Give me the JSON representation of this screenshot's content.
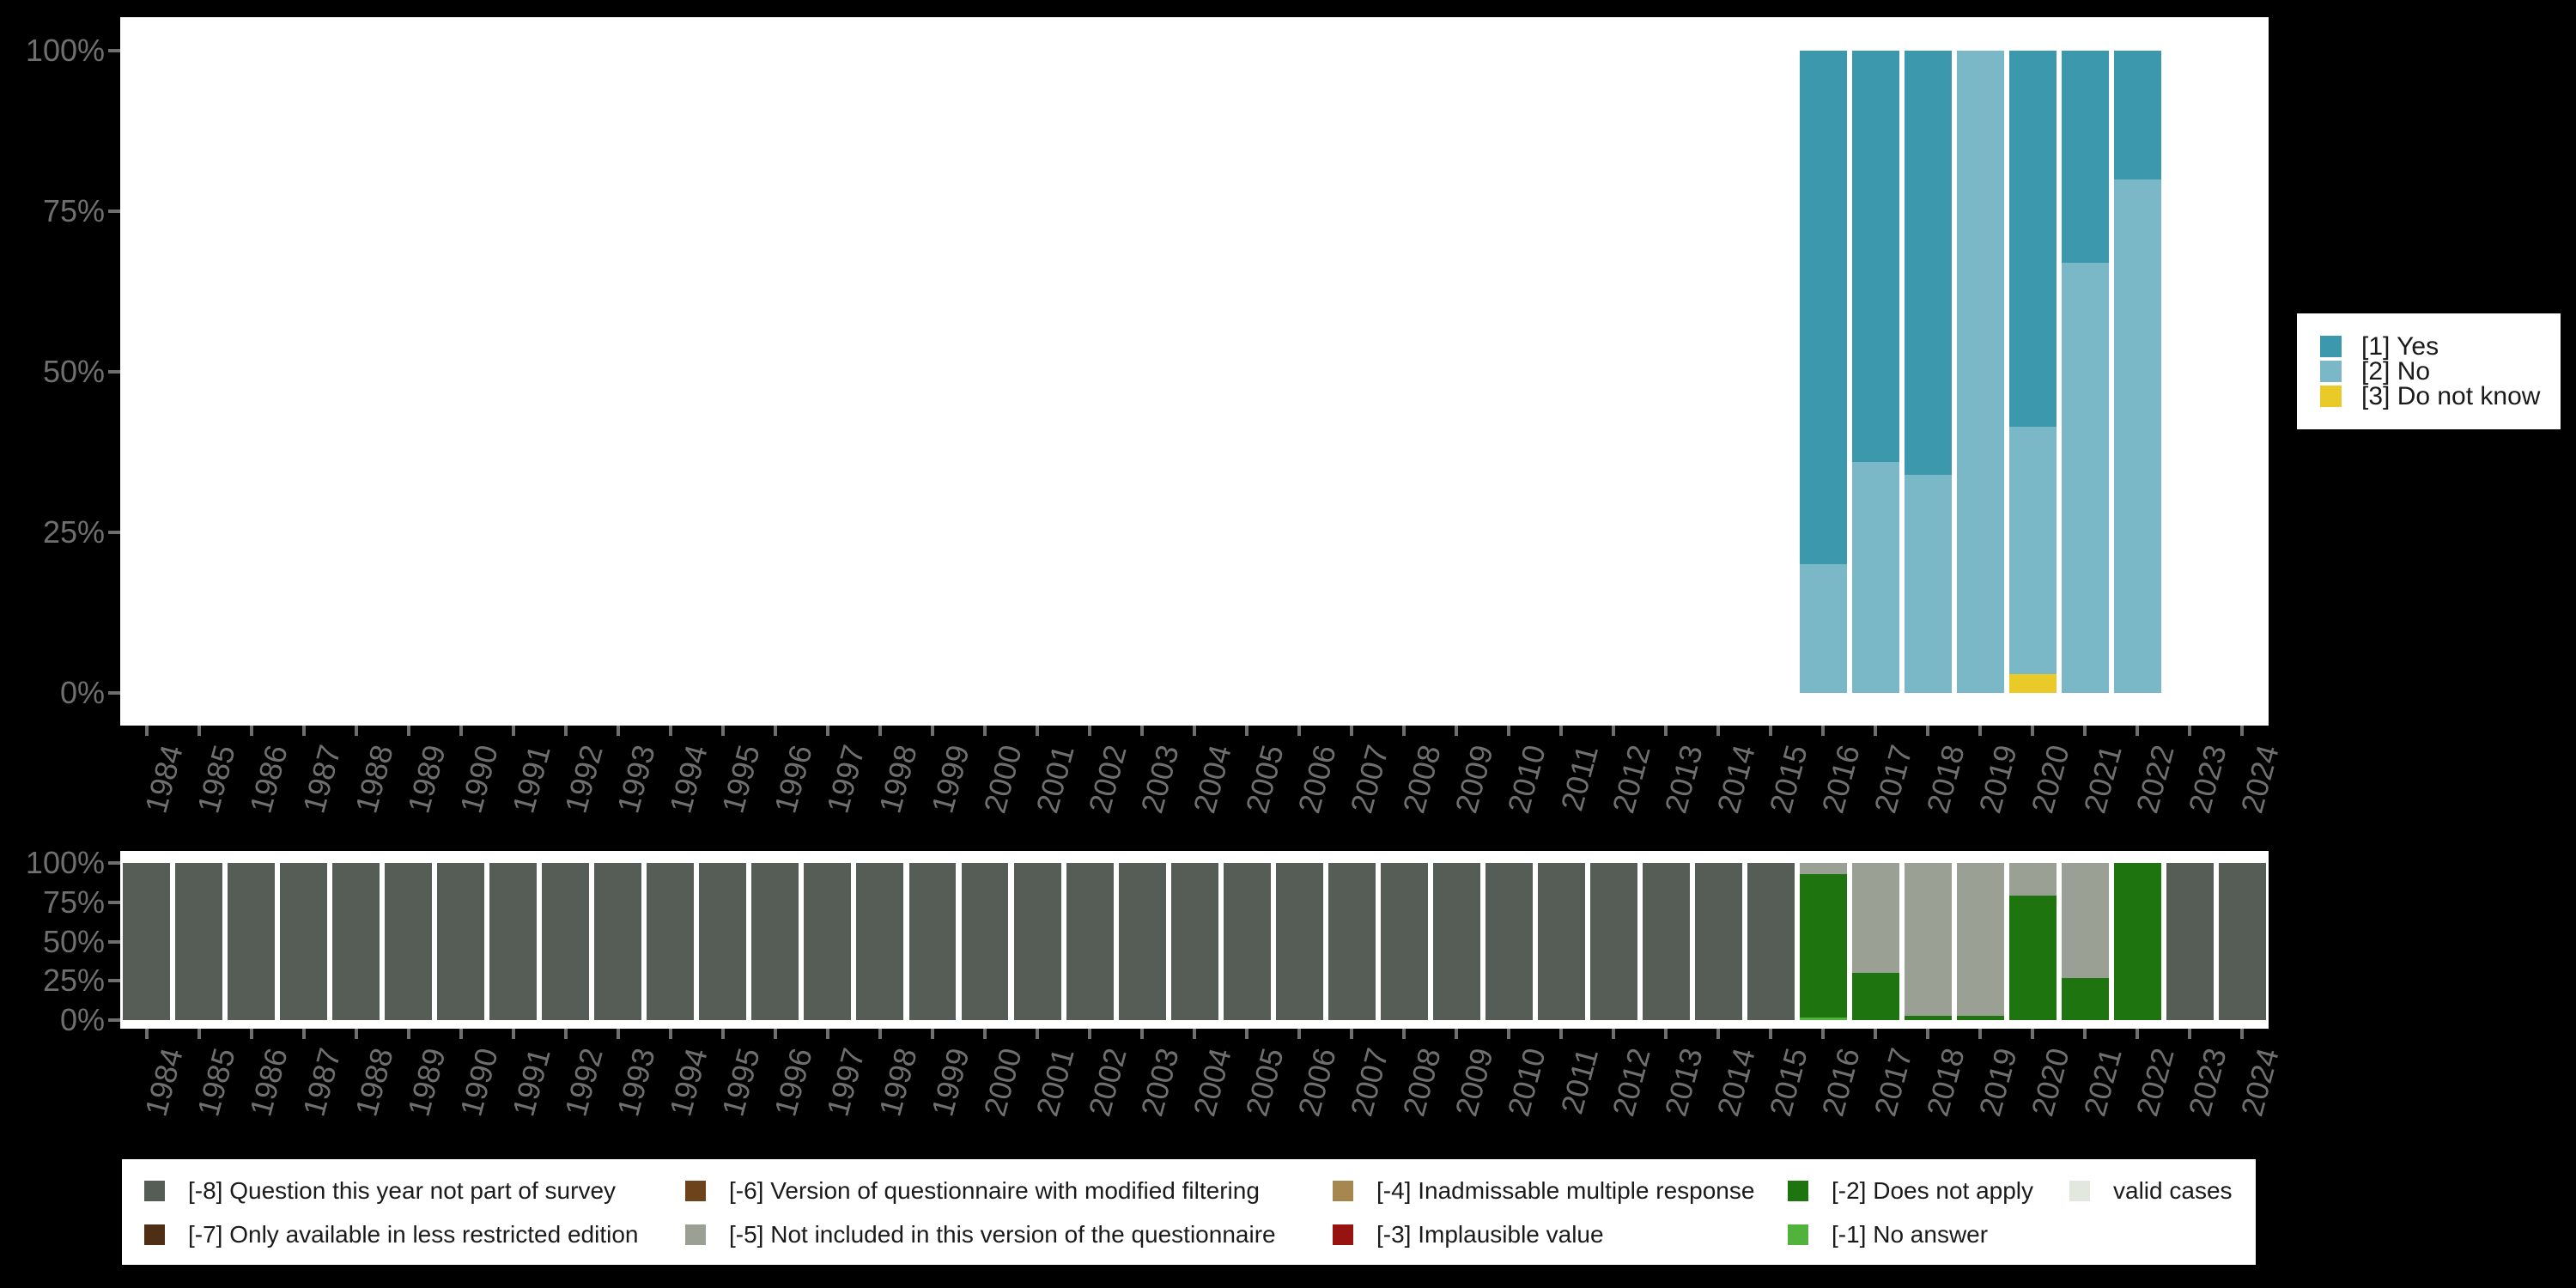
{
  "colors": {
    "background": "#000000",
    "panel": "#ffffff",
    "axis_text": "#6f6f6f",
    "legend_text": "#1a1a1a",
    "yes": "#3c98ad",
    "no": "#7ab7c7",
    "dk": "#e9ca28",
    "m8": "#565d56",
    "m7": "#4e2e15",
    "m6": "#6d431c",
    "m5": "#9ba095",
    "m4": "#a6874f",
    "m3": "#971310",
    "m2": "#1e750f",
    "m1": "#52b33c",
    "valid": "#e3e8df"
  },
  "years": [
    1984,
    1985,
    1986,
    1987,
    1988,
    1989,
    1990,
    1991,
    1992,
    1993,
    1994,
    1995,
    1996,
    1997,
    1998,
    1999,
    2000,
    2001,
    2002,
    2003,
    2004,
    2005,
    2006,
    2007,
    2008,
    2009,
    2010,
    2011,
    2012,
    2013,
    2014,
    2015,
    2016,
    2017,
    2018,
    2019,
    2020,
    2021,
    2022,
    2023,
    2024
  ],
  "y_axis_labels_top_to_bottom": [
    "100%",
    "75%",
    "50%",
    "25%",
    "0%"
  ],
  "chart_data": [
    {
      "id": "responses",
      "type": "bar",
      "stacked": true,
      "unit": "percent",
      "ylim": [
        0,
        100
      ],
      "y_tick_labels": [
        "0%",
        "25%",
        "50%",
        "75%",
        "100%"
      ],
      "grid": false,
      "legend_position": "right",
      "legend": [
        {
          "key": "yes",
          "label": "[1] Yes"
        },
        {
          "key": "no",
          "label": "[2] No"
        },
        {
          "key": "dk",
          "label": "[3] Do not know"
        }
      ],
      "bars": [
        {
          "year": 2016,
          "seg": [
            [
              "yes",
              80
            ],
            [
              "no",
              20
            ]
          ]
        },
        {
          "year": 2017,
          "seg": [
            [
              "yes",
              64
            ],
            [
              "no",
              36
            ]
          ]
        },
        {
          "year": 2018,
          "seg": [
            [
              "yes",
              66
            ],
            [
              "no",
              34
            ]
          ]
        },
        {
          "year": 2019,
          "seg": [
            [
              "no",
              100
            ]
          ]
        },
        {
          "year": 2020,
          "seg": [
            [
              "yes",
              58.5
            ],
            [
              "no",
              38.5
            ],
            [
              "dk",
              3
            ]
          ]
        },
        {
          "year": 2021,
          "seg": [
            [
              "yes",
              33
            ],
            [
              "no",
              67
            ]
          ]
        },
        {
          "year": 2022,
          "seg": [
            [
              "yes",
              20
            ],
            [
              "no",
              80
            ]
          ]
        }
      ]
    },
    {
      "id": "missings",
      "type": "bar",
      "stacked": true,
      "unit": "percent",
      "ylim": [
        0,
        100
      ],
      "y_tick_labels": [
        "0%",
        "25%",
        "50%",
        "75%",
        "100%"
      ],
      "grid": false,
      "legend_position": "bottom",
      "legend_columns": [
        [
          {
            "key": "m8",
            "label": "[-8] Question this year not part of survey"
          },
          {
            "key": "m7",
            "label": "[-7] Only available in less restricted edition"
          }
        ],
        [
          {
            "key": "m6",
            "label": "[-6] Version of questionnaire with modified filtering"
          },
          {
            "key": "m5",
            "label": "[-5] Not included in this version of the questionnaire"
          }
        ],
        [
          {
            "key": "m4",
            "label": "[-4] Inadmissable multiple response"
          },
          {
            "key": "m3",
            "label": "[-3] Implausible value"
          }
        ],
        [
          {
            "key": "m2",
            "label": "[-2] Does not apply"
          },
          {
            "key": "m1",
            "label": "[-1] No answer"
          }
        ],
        [
          {
            "key": "valid",
            "label": "valid cases"
          }
        ]
      ],
      "all_other_years_seg": [
        [
          "m8",
          100
        ]
      ],
      "bars": [
        {
          "year": 2016,
          "seg": [
            [
              "m5",
              7
            ],
            [
              "m2",
              91.5
            ],
            [
              "m1",
              1.5
            ]
          ]
        },
        {
          "year": 2017,
          "seg": [
            [
              "m5",
              70
            ],
            [
              "m2",
              30
            ]
          ]
        },
        {
          "year": 2018,
          "seg": [
            [
              "m5",
              97.5
            ],
            [
              "m2",
              2.5
            ]
          ]
        },
        {
          "year": 2019,
          "seg": [
            [
              "m5",
              97
            ],
            [
              "m2",
              3
            ]
          ]
        },
        {
          "year": 2020,
          "seg": [
            [
              "m5",
              21
            ],
            [
              "m2",
              79
            ]
          ]
        },
        {
          "year": 2021,
          "seg": [
            [
              "m5",
              73
            ],
            [
              "m2",
              27
            ]
          ]
        },
        {
          "year": 2022,
          "seg": [
            [
              "m2",
              100
            ]
          ]
        }
      ]
    }
  ]
}
